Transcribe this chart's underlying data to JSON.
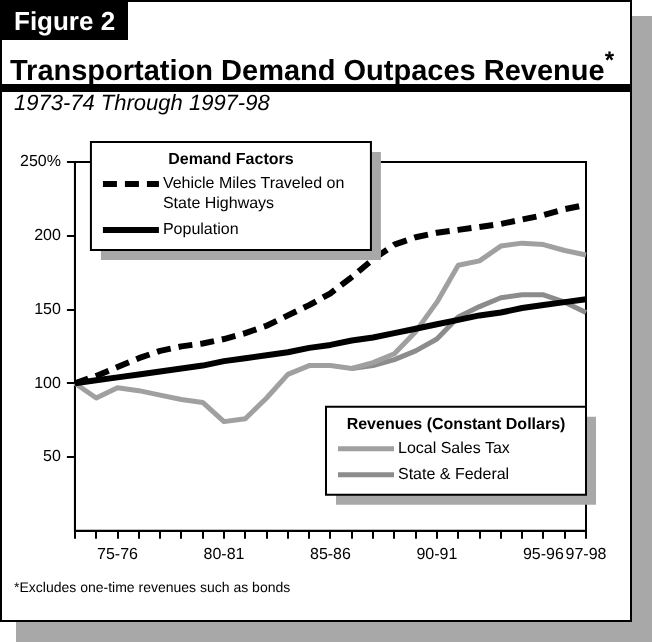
{
  "chart_data": {
    "type": "line",
    "title": "Transportation Demand Outpaces Revenue$^{*}$",
    "subtitle": "1973-74 Through 1997-98",
    "legend_title": "Demand Factors",
    "legend": "top left",
    "grid": false,
    "marker": "none",
    "annotations": [
      "Figure 2",
      "Revenues (Constant Dollars)",
      "*Excludes one-time revenues such as bonds"
    ],
    "categories": [
      null,
      null,
      "75-76",
      null,
      null,
      null,
      null,
      "80-81",
      null,
      null,
      null,
      null,
      "85-86",
      null,
      null,
      null,
      null,
      "90-91",
      null,
      null,
      null,
      null,
      "95-96",
      null,
      "97-98"
    ],
    "ylim": [
      0,
      250
    ],
    "yticks": [
      50,
      100,
      150,
      200,
      {
        "value": 250,
        "label": "250%"
      }
    ],
    "series": [
      {
        "name": "Vehicle Miles Traveled on State Highways",
        "color": "#000000",
        "line_style": "dashed",
        "values": [
          100,
          105,
          111,
          117,
          122,
          125,
          127,
          130,
          134,
          139,
          146,
          153,
          161,
          172,
          184,
          194,
          199,
          202,
          204,
          206,
          208,
          211,
          214,
          218,
          221
        ]
      },
      {
        "name": "Population",
        "color": "#000000",
        "line_style": "solid",
        "values": [
          100,
          102,
          104,
          106,
          108,
          110,
          112,
          115,
          117,
          119,
          121,
          124,
          126,
          129,
          131,
          134,
          137,
          140,
          143,
          146,
          148,
          151,
          153,
          155,
          157
        ]
      },
      {
        "name": "Local Sales Tax",
        "color": "#a0a0a0",
        "line_style": "solid",
        "values": [
          100,
          90,
          97,
          95,
          92,
          89,
          87,
          74,
          76,
          90,
          106,
          112,
          112,
          110,
          114,
          120,
          135,
          155,
          180,
          183,
          193,
          195,
          194,
          190,
          187
        ]
      },
      {
        "name": "State & Federal",
        "color": "#8c8c8c",
        "line_style": "solid",
        "values": [
          null,
          null,
          null,
          null,
          null,
          null,
          null,
          null,
          null,
          null,
          null,
          null,
          null,
          110,
          112,
          116,
          122,
          130,
          145,
          152,
          158,
          160,
          160,
          155,
          148
        ]
      }
    ]
  }
}
